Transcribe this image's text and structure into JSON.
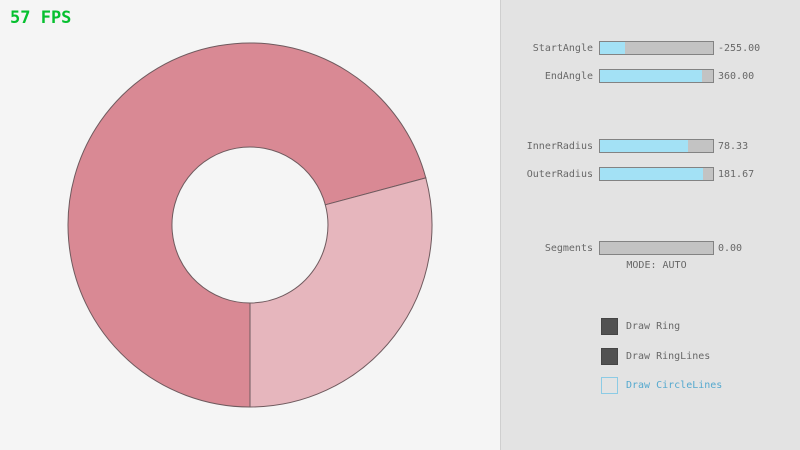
{
  "fps_label": "57 FPS",
  "colors": {
    "bg": "#f5f5f5",
    "panel-bg": "#e3e3e3",
    "divider": "#cfcfcf",
    "fps-green": "#06c02f",
    "ring-dark": "#d98994",
    "ring-light": "#e6b6bd",
    "ring-line": "#6f5a5e",
    "slider-track": "#c3c3c3",
    "slider-border": "#838383",
    "slider-fill": "#a3e1f5",
    "label-gray": "#686868",
    "accent-blue": "#55a9cf",
    "accent-blue-border": "#8ccbe5",
    "checkbox-dark": "#515151",
    "checkbox-border": "#454545"
  },
  "ring": {
    "start_angle": "-255.00",
    "end_angle": "360.00",
    "inner_radius": "78.33",
    "outer_radius": "181.67",
    "segments": "0.00"
  },
  "panel": {
    "sliders": [
      {
        "label": "StartAngle",
        "value": "-255.00",
        "fill_pct": 21.7
      },
      {
        "label": "EndAngle",
        "value": "360.00",
        "fill_pct": 90.0
      },
      {
        "label": "InnerRadius",
        "value": "78.33",
        "fill_pct": 78.3
      },
      {
        "label": "OuterRadius",
        "value": "181.67",
        "fill_pct": 90.8
      },
      {
        "label": "Segments",
        "value": "0.00",
        "fill_pct": 0
      }
    ],
    "mode_label": "MODE: AUTO",
    "checkboxes": [
      {
        "label": "Draw Ring",
        "checked": true
      },
      {
        "label": "Draw RingLines",
        "checked": true
      },
      {
        "label": "Draw CircleLines",
        "checked": false
      }
    ]
  }
}
